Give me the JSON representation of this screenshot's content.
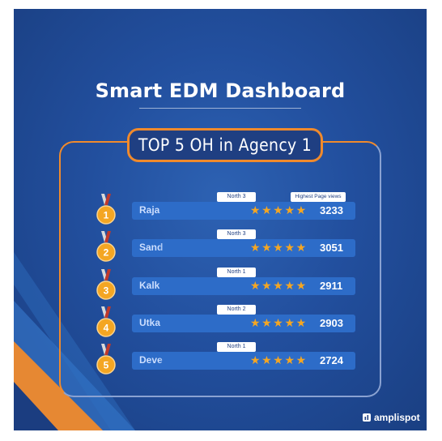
{
  "title": "Smart EDM Dashboard",
  "badge": "TOP 5 OH in Agency 1",
  "header_label": "Highest Page views",
  "brand": "amplispot",
  "colors": {
    "accent": "#f08a2c",
    "background": "#224f9e",
    "bar": "#2d6cc8",
    "star": "#f4a623"
  },
  "rows": [
    {
      "rank": "1",
      "name": "Raja",
      "region": "North 3",
      "stars": "★★★★★",
      "views": "3233"
    },
    {
      "rank": "2",
      "name": "Sand",
      "region": "North 3",
      "stars": "★★★★★",
      "views": "3051"
    },
    {
      "rank": "3",
      "name": "Kalk",
      "region": "North 1",
      "stars": "★★★★★",
      "views": "2911"
    },
    {
      "rank": "4",
      "name": "Utka",
      "region": "North 2",
      "stars": "★★★★★",
      "views": "2903"
    },
    {
      "rank": "5",
      "name": "Deve",
      "region": "North 1",
      "stars": "★★★★★",
      "views": "2724"
    }
  ]
}
